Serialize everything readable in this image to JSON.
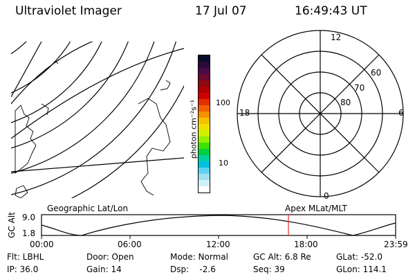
{
  "header": {
    "title": "Ultraviolet Imager",
    "date": "17 Jul 07",
    "time": "16:49:43 UT"
  },
  "colorbar": {
    "label": "photon cm⁻²s⁻¹",
    "ticks": [
      "100",
      "10"
    ],
    "colors": [
      "#0b0b2a",
      "#2a0a3a",
      "#4a0a4a",
      "#6a0a30",
      "#8b0a10",
      "#b00000",
      "#d00000",
      "#e03000",
      "#f06000",
      "#f59000",
      "#f7c000",
      "#f0e000",
      "#d0f000",
      "#90f000",
      "#40e000",
      "#00d040",
      "#00d0a0",
      "#00c0e0",
      "#60d0f0",
      "#a0e0f0",
      "#d0f0f8",
      "#ffffff"
    ]
  },
  "polar": {
    "mlt_labels": [
      "12",
      "18",
      "6",
      "0"
    ],
    "lat_labels": [
      "60",
      "70",
      "80"
    ]
  },
  "timeline": {
    "left_label": "Geographic Lat/Lon",
    "right_label": "Apex MLat/MLT",
    "axis_title": "GC Alt",
    "y_ticks": [
      "9.0",
      "1.8"
    ],
    "x_ticks": [
      "00:00",
      "06:00",
      "12:00",
      "18:00",
      "23:59"
    ]
  },
  "info": {
    "row1": [
      "Flt: LBHL",
      "Door: Open",
      "Mode: Normal",
      "GC Alt: 6.8 Re",
      "GLat: -52.0"
    ],
    "row2": [
      "IP: 36.0",
      "Gain: 14",
      "Dsp:    -2.6",
      "Seq: 39",
      "GLon: 114.1"
    ]
  }
}
